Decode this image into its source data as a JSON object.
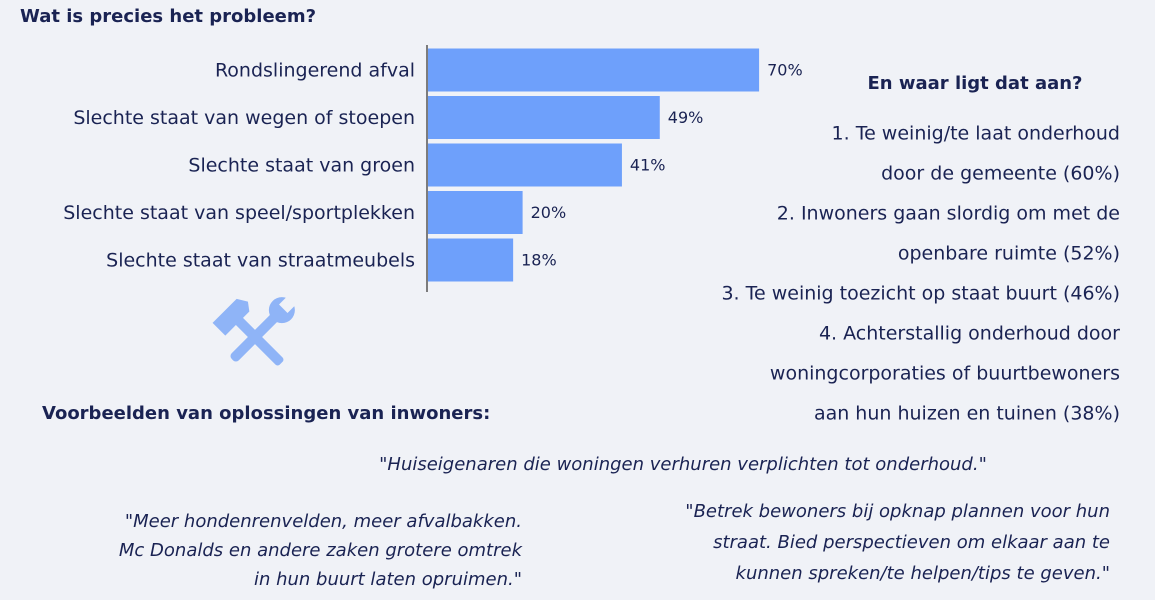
{
  "chart_data": {
    "type": "bar",
    "title": "Wat is precies het probleem?",
    "categories": [
      "Rondslingerend afval",
      "Slechte staat van wegen of stoepen",
      "Slechte staat van groen",
      "Slechte staat van speel/sportplekken",
      "Slechte staat van straatmeubels"
    ],
    "values": [
      70,
      49,
      41,
      20,
      18
    ],
    "value_labels": [
      "70%",
      "49%",
      "41%",
      "20%",
      "18%"
    ],
    "color": "#6ea0fb"
  },
  "causes": {
    "title": "En waar ligt dat aan?",
    "items": [
      [
        "1. Te weinig/te laat onderhoud",
        "door de gemeente (60%)"
      ],
      [
        "2. Inwoners gaan slordig om met de",
        "openbare ruimte (52%)"
      ],
      [
        "3. Te weinig toezicht op staat buurt (46%)"
      ],
      [
        "4. Achterstallig onderhoud door",
        "woningcorporaties of buurtbewoners",
        "aan hun huizen en tuinen (38%)"
      ]
    ]
  },
  "solutions": {
    "title": "Voorbeelden van oplossingen van inwoners:",
    "quote_center": [
      "\"Huiseigenaren die woningen verhuren verplichten tot onderhoud.\""
    ],
    "quote_left": [
      "\"Meer hondenrenvelden, meer afvalbakken.",
      "Mc Donalds en andere zaken grotere omtrek",
      "in hun buurt laten opruimen.\""
    ],
    "quote_right": [
      "\"Betrek bewoners bij opknap plannen voor hun",
      "straat. Bied perspectieven om elkaar aan te",
      "kunnen spreken/te helpen/tips te geven.\""
    ]
  }
}
